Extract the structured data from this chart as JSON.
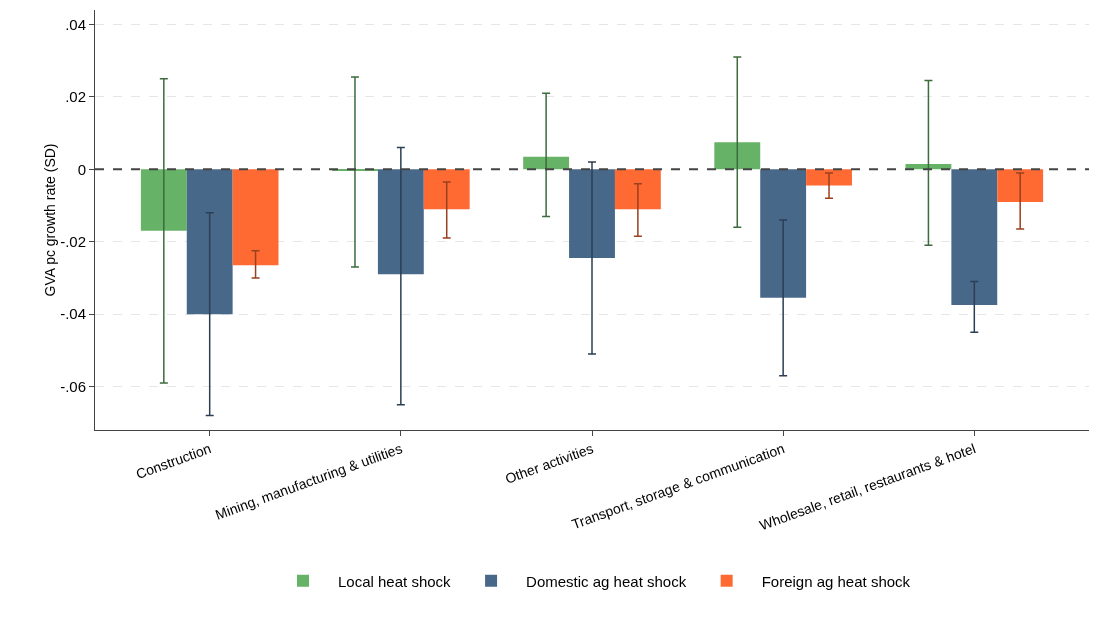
{
  "chart_data": {
    "type": "bar",
    "ylabel": "GVA pc growth rate (SD)",
    "categories": [
      "Construction",
      "Mining, manufacturing & utilities",
      "Other activities",
      "Transport, storage & communication",
      "Wholesale, retail, restaurants & hotel"
    ],
    "series": [
      {
        "name": "Local heat shock",
        "color": "#66b266",
        "values": [
          -0.017,
          -0.0005,
          0.0035,
          0.0075,
          0.0015
        ],
        "errors": [
          [
            -0.059,
            0.025
          ],
          [
            -0.027,
            0.0255
          ],
          [
            -0.013,
            0.021
          ],
          [
            -0.016,
            0.031
          ],
          [
            -0.021,
            0.0245
          ]
        ]
      },
      {
        "name": "Domestic ag heat shock",
        "color": "#48688a",
        "values": [
          -0.04,
          -0.029,
          -0.0245,
          -0.0355,
          -0.0375
        ],
        "errors": [
          [
            -0.068,
            -0.012
          ],
          [
            -0.065,
            0.006
          ],
          [
            -0.051,
            0.002
          ],
          [
            -0.057,
            -0.014
          ],
          [
            -0.045,
            -0.031
          ]
        ]
      },
      {
        "name": "Foreign ag heat shock",
        "color": "#ff6a33",
        "values": [
          -0.0265,
          -0.011,
          -0.011,
          -0.0045,
          -0.009
        ],
        "errors": [
          [
            -0.03,
            -0.0225
          ],
          [
            -0.019,
            -0.0035
          ],
          [
            -0.0185,
            -0.004
          ],
          [
            -0.008,
            -0.001
          ],
          [
            -0.0165,
            -0.001
          ]
        ]
      }
    ],
    "ylim": [
      -0.072,
      0.044
    ],
    "yticks": [
      {
        "value": 0.04,
        "label": ".04"
      },
      {
        "value": 0.02,
        "label": ".02"
      },
      0,
      {
        "value": -0.02,
        "label": "-.02"
      },
      {
        "value": -0.04,
        "label": "-.04"
      },
      {
        "value": -0.06,
        "label": "-.06"
      }
    ],
    "grid": "y",
    "legend": "bottom",
    "ref_lines": [
      {
        "axis": "y",
        "value": 0,
        "color": "#444444",
        "line_style": "dashed"
      }
    ]
  }
}
